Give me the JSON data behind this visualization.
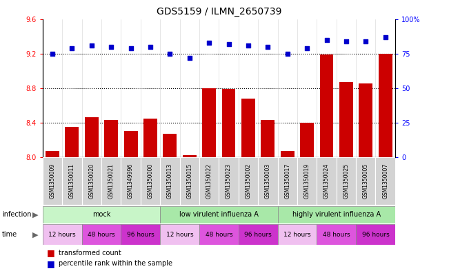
{
  "title": "GDS5159 / ILMN_2650739",
  "samples": [
    "GSM1350009",
    "GSM1350011",
    "GSM1350020",
    "GSM1350021",
    "GSM1349996",
    "GSM1350000",
    "GSM1350013",
    "GSM1350015",
    "GSM1350022",
    "GSM1350023",
    "GSM1350002",
    "GSM1350003",
    "GSM1350017",
    "GSM1350019",
    "GSM1350024",
    "GSM1350025",
    "GSM1350005",
    "GSM1350007"
  ],
  "transformed_counts": [
    8.07,
    8.35,
    8.46,
    8.43,
    8.3,
    8.45,
    8.27,
    8.02,
    8.8,
    8.79,
    8.68,
    8.43,
    8.07,
    8.4,
    9.19,
    8.87,
    8.85,
    9.2
  ],
  "percentile_ranks": [
    75,
    79,
    81,
    80,
    79,
    80,
    75,
    72,
    83,
    82,
    81,
    80,
    75,
    79,
    85,
    84,
    84,
    87
  ],
  "ylim_left": [
    8.0,
    9.6
  ],
  "ylim_right": [
    0,
    100
  ],
  "yticks_left": [
    8.0,
    8.4,
    8.8,
    9.2,
    9.6
  ],
  "yticks_right": [
    0,
    25,
    50,
    75,
    100
  ],
  "ytick_labels_right": [
    "0",
    "25",
    "50",
    "75",
    "100%"
  ],
  "bar_color": "#cc0000",
  "dot_color": "#0000cc",
  "infection_groups": [
    {
      "label": "mock",
      "start": 0,
      "end": 6,
      "color": "#c8f5c8"
    },
    {
      "label": "low virulent influenza A",
      "start": 6,
      "end": 12,
      "color": "#a8e8a8"
    },
    {
      "label": "highly virulent influenza A",
      "start": 12,
      "end": 18,
      "color": "#a8e8a8"
    }
  ],
  "time_groups": [
    {
      "label": "12 hours",
      "start": 0,
      "end": 2,
      "color": "#f0c8f0"
    },
    {
      "label": "48 hours",
      "start": 2,
      "end": 4,
      "color": "#e060e0"
    },
    {
      "label": "96 hours",
      "start": 4,
      "end": 6,
      "color": "#cc44cc"
    },
    {
      "label": "12 hours",
      "start": 6,
      "end": 8,
      "color": "#f0c8f0"
    },
    {
      "label": "48 hours",
      "start": 8,
      "end": 10,
      "color": "#e060e0"
    },
    {
      "label": "96 hours",
      "start": 10,
      "end": 12,
      "color": "#cc44cc"
    },
    {
      "label": "12 hours",
      "start": 12,
      "end": 14,
      "color": "#f0c8f0"
    },
    {
      "label": "48 hours",
      "start": 14,
      "end": 16,
      "color": "#e060e0"
    },
    {
      "label": "96 hours",
      "start": 16,
      "end": 18,
      "color": "#cc44cc"
    }
  ],
  "bg_color": "#ffffff",
  "xtick_bg": "#d0d0d0",
  "label_fontsize": 7,
  "title_fontsize": 10
}
